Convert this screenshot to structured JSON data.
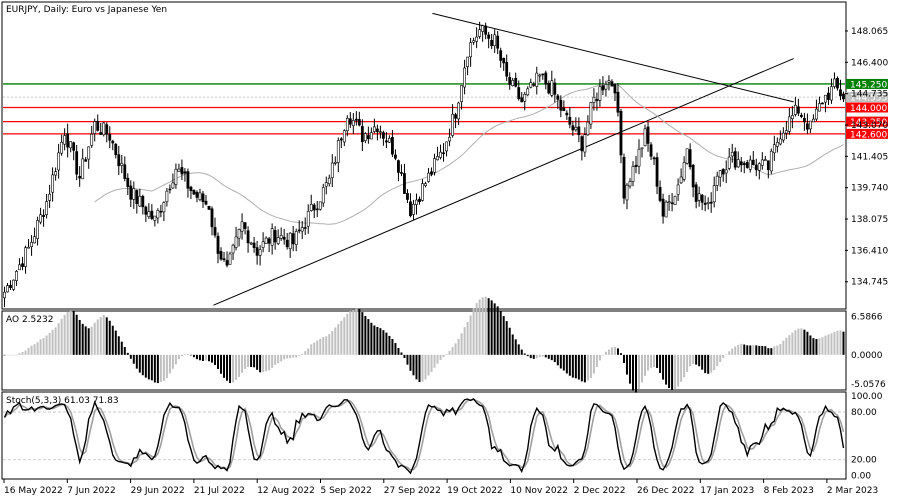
{
  "main": {
    "title": "EURJPY, Daily:  Euro vs Japanese Yen",
    "yticks": [
      "148.065",
      "146.400",
      "144.735",
      "143.070",
      "141.405",
      "139.740",
      "138.075",
      "136.410",
      "134.745"
    ],
    "ylim": [
      133.35,
      149.55
    ]
  },
  "levels": [
    {
      "value": 145.25,
      "label": "145.250",
      "color": "#008000"
    },
    {
      "value": 144.0,
      "label": "144.000",
      "color": "#ff0000"
    },
    {
      "value": 143.25,
      "label": "143.250",
      "color": "#ff0000"
    },
    {
      "value": 142.6,
      "label": "142.600",
      "color": "#ff0000"
    }
  ],
  "current_price": {
    "value": 144.555,
    "label": "144.555",
    "color": "#c0c0c0"
  },
  "trendlines": [
    {
      "name": "descending",
      "from": [
        0.51,
        149.0
      ],
      "to": [
        0.939,
        144.3
      ]
    },
    {
      "name": "ascending",
      "from": [
        0.25,
        133.5
      ],
      "to": [
        0.939,
        146.6
      ]
    }
  ],
  "xlabels": [
    "16 May 2022",
    "7 Jun 2022",
    "29 Jun 2022",
    "21 Jul 2022",
    "12 Aug 2022",
    "5 Sep 2022",
    "27 Sep 2022",
    "19 Oct 2022",
    "10 Nov 2022",
    "2 Dec 2022",
    "26 Dec 2022",
    "17 Jan 2023",
    "8 Feb 2023",
    "2 Mar 2023"
  ],
  "ao": {
    "title": "AO 2.5232",
    "yticks": [
      "6.5866",
      "0.0000",
      "-5.0576"
    ],
    "ylim": [
      -5.9,
      7.4
    ],
    "up_color": "#c0c0c0",
    "down_color": "#000000"
  },
  "stoch": {
    "title": "Stoch(5,3,3) 61.03 71.83",
    "yticks": [
      "100.00",
      "80.00",
      "20.00",
      "0.00"
    ],
    "ylim": [
      -3,
      104
    ],
    "main_color": "#000000",
    "signal_color": "#a0a0a0"
  },
  "chart_data": {
    "type": "candlestick",
    "symbol": "EURJPY",
    "timeframe": "Daily",
    "anchors": [
      [
        0,
        134.2
      ],
      [
        8,
        136.5
      ],
      [
        14,
        139.0
      ],
      [
        20,
        142.8
      ],
      [
        25,
        140.3
      ],
      [
        30,
        143.1
      ],
      [
        35,
        142.5
      ],
      [
        42,
        139.5
      ],
      [
        50,
        138.0
      ],
      [
        57,
        140.8
      ],
      [
        63,
        139.4
      ],
      [
        68,
        138.8
      ],
      [
        70,
        137.0
      ],
      [
        74,
        135.3
      ],
      [
        79,
        137.8
      ],
      [
        84,
        136.4
      ],
      [
        90,
        137.3
      ],
      [
        96,
        136.8
      ],
      [
        102,
        138.5
      ],
      [
        108,
        140.1
      ],
      [
        114,
        143.8
      ],
      [
        119,
        142.5
      ],
      [
        124,
        143.1
      ],
      [
        130,
        141.6
      ],
      [
        135,
        138.6
      ],
      [
        140,
        140.0
      ],
      [
        146,
        141.8
      ],
      [
        150,
        143.8
      ],
      [
        154,
        147.1
      ],
      [
        158,
        148.1
      ],
      [
        163,
        147.5
      ],
      [
        167,
        145.5
      ],
      [
        172,
        144.3
      ],
      [
        178,
        145.6
      ],
      [
        182,
        145.0
      ],
      [
        186,
        143.6
      ],
      [
        192,
        142.1
      ],
      [
        196,
        144.4
      ],
      [
        200,
        145.5
      ],
      [
        203,
        145.2
      ],
      [
        206,
        139.6
      ],
      [
        210,
        141.1
      ],
      [
        213,
        142.5
      ],
      [
        216,
        141.0
      ],
      [
        219,
        138.3
      ],
      [
        224,
        139.9
      ],
      [
        227,
        141.8
      ],
      [
        230,
        139.4
      ],
      [
        234,
        138.6
      ],
      [
        237,
        140.6
      ],
      [
        242,
        141.3
      ],
      [
        248,
        141.0
      ],
      [
        254,
        140.8
      ],
      [
        258,
        142.7
      ],
      [
        264,
        143.9
      ],
      [
        268,
        142.9
      ],
      [
        272,
        144.4
      ],
      [
        276,
        145.1
      ],
      [
        279,
        144.6
      ]
    ]
  }
}
